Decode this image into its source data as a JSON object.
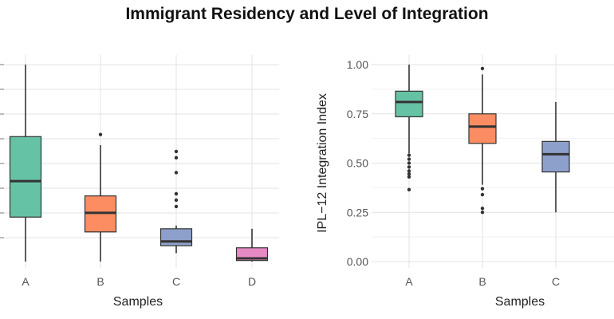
{
  "figure": {
    "title": "Immigrant Residency and Level of Integration"
  },
  "chart_data": [
    {
      "type": "boxplot",
      "title": "",
      "xlabel": "Samples",
      "ylabel": "",
      "ylim": [
        0,
        0.93
      ],
      "yticks_visible": false,
      "grid": true,
      "categories": [
        "A",
        "B",
        "C",
        "D"
      ],
      "colors": [
        "#66c2a5",
        "#fc8d62",
        "#8da0cb",
        "#e78ac3"
      ],
      "boxes": [
        {
          "label": "A",
          "whisker_low": 0.0,
          "q1": 0.21,
          "median": 0.38,
          "q3": 0.59,
          "whisker_high": 0.93,
          "outliers": []
        },
        {
          "label": "B",
          "whisker_low": 0.0,
          "q1": 0.14,
          "median": 0.23,
          "q3": 0.31,
          "whisker_high": 0.55,
          "outliers": [
            0.6
          ]
        },
        {
          "label": "C",
          "whisker_low": 0.04,
          "q1": 0.075,
          "median": 0.095,
          "q3": 0.155,
          "whisker_high": 0.17,
          "outliers": [
            0.26,
            0.29,
            0.32,
            0.42,
            0.49,
            0.52
          ]
        },
        {
          "label": "D",
          "whisker_low": 0.0,
          "q1": 0.005,
          "median": 0.015,
          "q3": 0.065,
          "whisker_high": 0.155,
          "outliers": []
        }
      ]
    },
    {
      "type": "boxplot",
      "title": "",
      "xlabel": "Samples",
      "ylabel": "IPL−12 Integration Index",
      "ylim": [
        0,
        1
      ],
      "yticks": [
        "0.00",
        "0.25",
        "0.50",
        "0.75",
        "1.00"
      ],
      "ytick_values": [
        0,
        0.25,
        0.5,
        0.75,
        1.0
      ],
      "grid": true,
      "categories": [
        "A",
        "B",
        "C"
      ],
      "colors": [
        "#66c2a5",
        "#fc8d62",
        "#8da0cb"
      ],
      "boxes": [
        {
          "label": "A",
          "whisker_low": 0.55,
          "q1": 0.735,
          "median": 0.81,
          "q3": 0.865,
          "whisker_high": 1.0,
          "outliers": [
            0.365,
            0.43,
            0.445,
            0.46,
            0.48,
            0.5,
            0.52,
            0.54
          ]
        },
        {
          "label": "B",
          "whisker_low": 0.39,
          "q1": 0.6,
          "median": 0.685,
          "q3": 0.75,
          "whisker_high": 0.95,
          "outliers": [
            0.25,
            0.27,
            0.34,
            0.37,
            0.98
          ]
        },
        {
          "label": "C",
          "whisker_low": 0.25,
          "q1": 0.455,
          "median": 0.545,
          "q3": 0.61,
          "whisker_high": 0.81,
          "outliers": []
        }
      ]
    }
  ]
}
